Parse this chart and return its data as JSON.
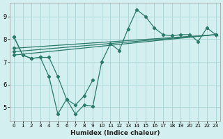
{
  "background_color": "#d4efef",
  "grid_color": "#b0d8d8",
  "line_color": "#2a7a6a",
  "xlabel": "Humidex (Indice chaleur)",
  "xlim": [
    -0.5,
    23.5
  ],
  "ylim": [
    4.4,
    9.6
  ],
  "yticks": [
    5,
    6,
    7,
    8,
    9
  ],
  "xticks": [
    0,
    1,
    2,
    3,
    4,
    5,
    6,
    7,
    8,
    9,
    10,
    11,
    12,
    13,
    14,
    15,
    16,
    17,
    18,
    19,
    20,
    21,
    22,
    23
  ],
  "lines": [
    {
      "x": [
        0,
        1,
        2,
        3,
        4,
        5,
        6,
        7,
        8,
        9,
        10,
        11,
        12,
        13,
        14,
        15,
        16,
        17,
        18,
        19,
        20,
        21,
        22,
        23
      ],
      "y": [
        8.1,
        7.3,
        7.15,
        7.2,
        7.2,
        6.35,
        5.35,
        4.7,
        5.1,
        5.05,
        7.0,
        7.8,
        7.5,
        8.45,
        9.3,
        9.0,
        8.5,
        8.2,
        8.15,
        8.2,
        8.2,
        7.9,
        8.5,
        8.2
      ]
    },
    {
      "x": [
        0,
        23
      ],
      "y": [
        7.3,
        8.2
      ]
    },
    {
      "x": [
        0,
        23
      ],
      "y": [
        7.45,
        8.2
      ]
    },
    {
      "x": [
        0,
        23
      ],
      "y": [
        7.6,
        8.2
      ]
    },
    {
      "x": [
        0,
        1,
        2,
        3,
        4,
        5,
        6,
        7,
        8,
        9
      ],
      "y": [
        8.1,
        7.3,
        7.15,
        7.2,
        6.35,
        4.7,
        5.35,
        5.1,
        5.5,
        6.2
      ]
    }
  ]
}
